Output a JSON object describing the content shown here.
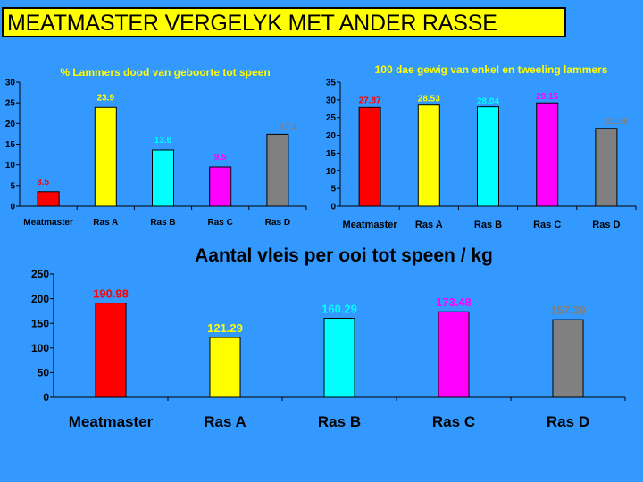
{
  "page_title": "MEATMASTER VERGELYK MET ANDER RASSE",
  "colors": {
    "background": "#3399ff",
    "title_bg": "#ffff00",
    "chart_title": "#ffff00",
    "bottom_title": "#000000"
  },
  "chart_data": [
    {
      "type": "bar",
      "title": "% Lammers dood van geboorte  tot speen",
      "categories": [
        "Meatmaster",
        "Ras A",
        "Ras B",
        "Ras C",
        "Ras D"
      ],
      "values": [
        3.5,
        23.9,
        13.6,
        9.5,
        17.4
      ],
      "labels": [
        "3.5",
        "23.9",
        "13.6",
        "9.5",
        "17.4"
      ],
      "colors": [
        "#ff0000",
        "#ffff00",
        "#00ffff",
        "#ff00ff",
        "#808080"
      ],
      "label_colors": [
        "#ff0000",
        "#ffff00",
        "#00ffff",
        "#ff00ff",
        "#808080"
      ],
      "yticks": [
        0,
        5,
        10,
        15,
        20,
        25,
        30
      ],
      "ylim": [
        0,
        30
      ],
      "xlabel": "",
      "ylabel": ""
    },
    {
      "type": "bar",
      "title": "100 dae gewig van enkel en tweeling lammers",
      "categories": [
        "Meatmaster",
        "Ras A",
        "Ras B",
        "Ras C",
        "Ras D"
      ],
      "values": [
        27.87,
        28.53,
        28.04,
        29.15,
        21.96
      ],
      "labels": [
        "27.87",
        "28.53",
        "28.04",
        "29.15",
        "21.96"
      ],
      "colors": [
        "#ff0000",
        "#ffff00",
        "#00ffff",
        "#ff00ff",
        "#808080"
      ],
      "label_colors": [
        "#ff0000",
        "#ffff00",
        "#00ffff",
        "#ff00ff",
        "#808080"
      ],
      "yticks": [
        0,
        5,
        10,
        15,
        20,
        25,
        30,
        35
      ],
      "ylim": [
        0,
        35
      ],
      "xlabel": "",
      "ylabel": ""
    },
    {
      "type": "bar",
      "title": "Aantal vleis per ooi tot speen / kg",
      "categories": [
        "Meatmaster",
        "Ras A",
        "Ras B",
        "Ras C",
        "Ras D"
      ],
      "values": [
        190.98,
        121.29,
        160.29,
        173.48,
        157.39
      ],
      "labels": [
        "190.98",
        "121.29",
        "160.29",
        "173.48",
        "157.39"
      ],
      "colors": [
        "#ff0000",
        "#ffff00",
        "#00ffff",
        "#ff00ff",
        "#808080"
      ],
      "label_colors": [
        "#ff0000",
        "#ffff00",
        "#00ffff",
        "#ff00ff",
        "#808080"
      ],
      "yticks": [
        0,
        50,
        100,
        150,
        200,
        250
      ],
      "ylim": [
        0,
        250
      ],
      "xlabel": "",
      "ylabel": ""
    }
  ]
}
